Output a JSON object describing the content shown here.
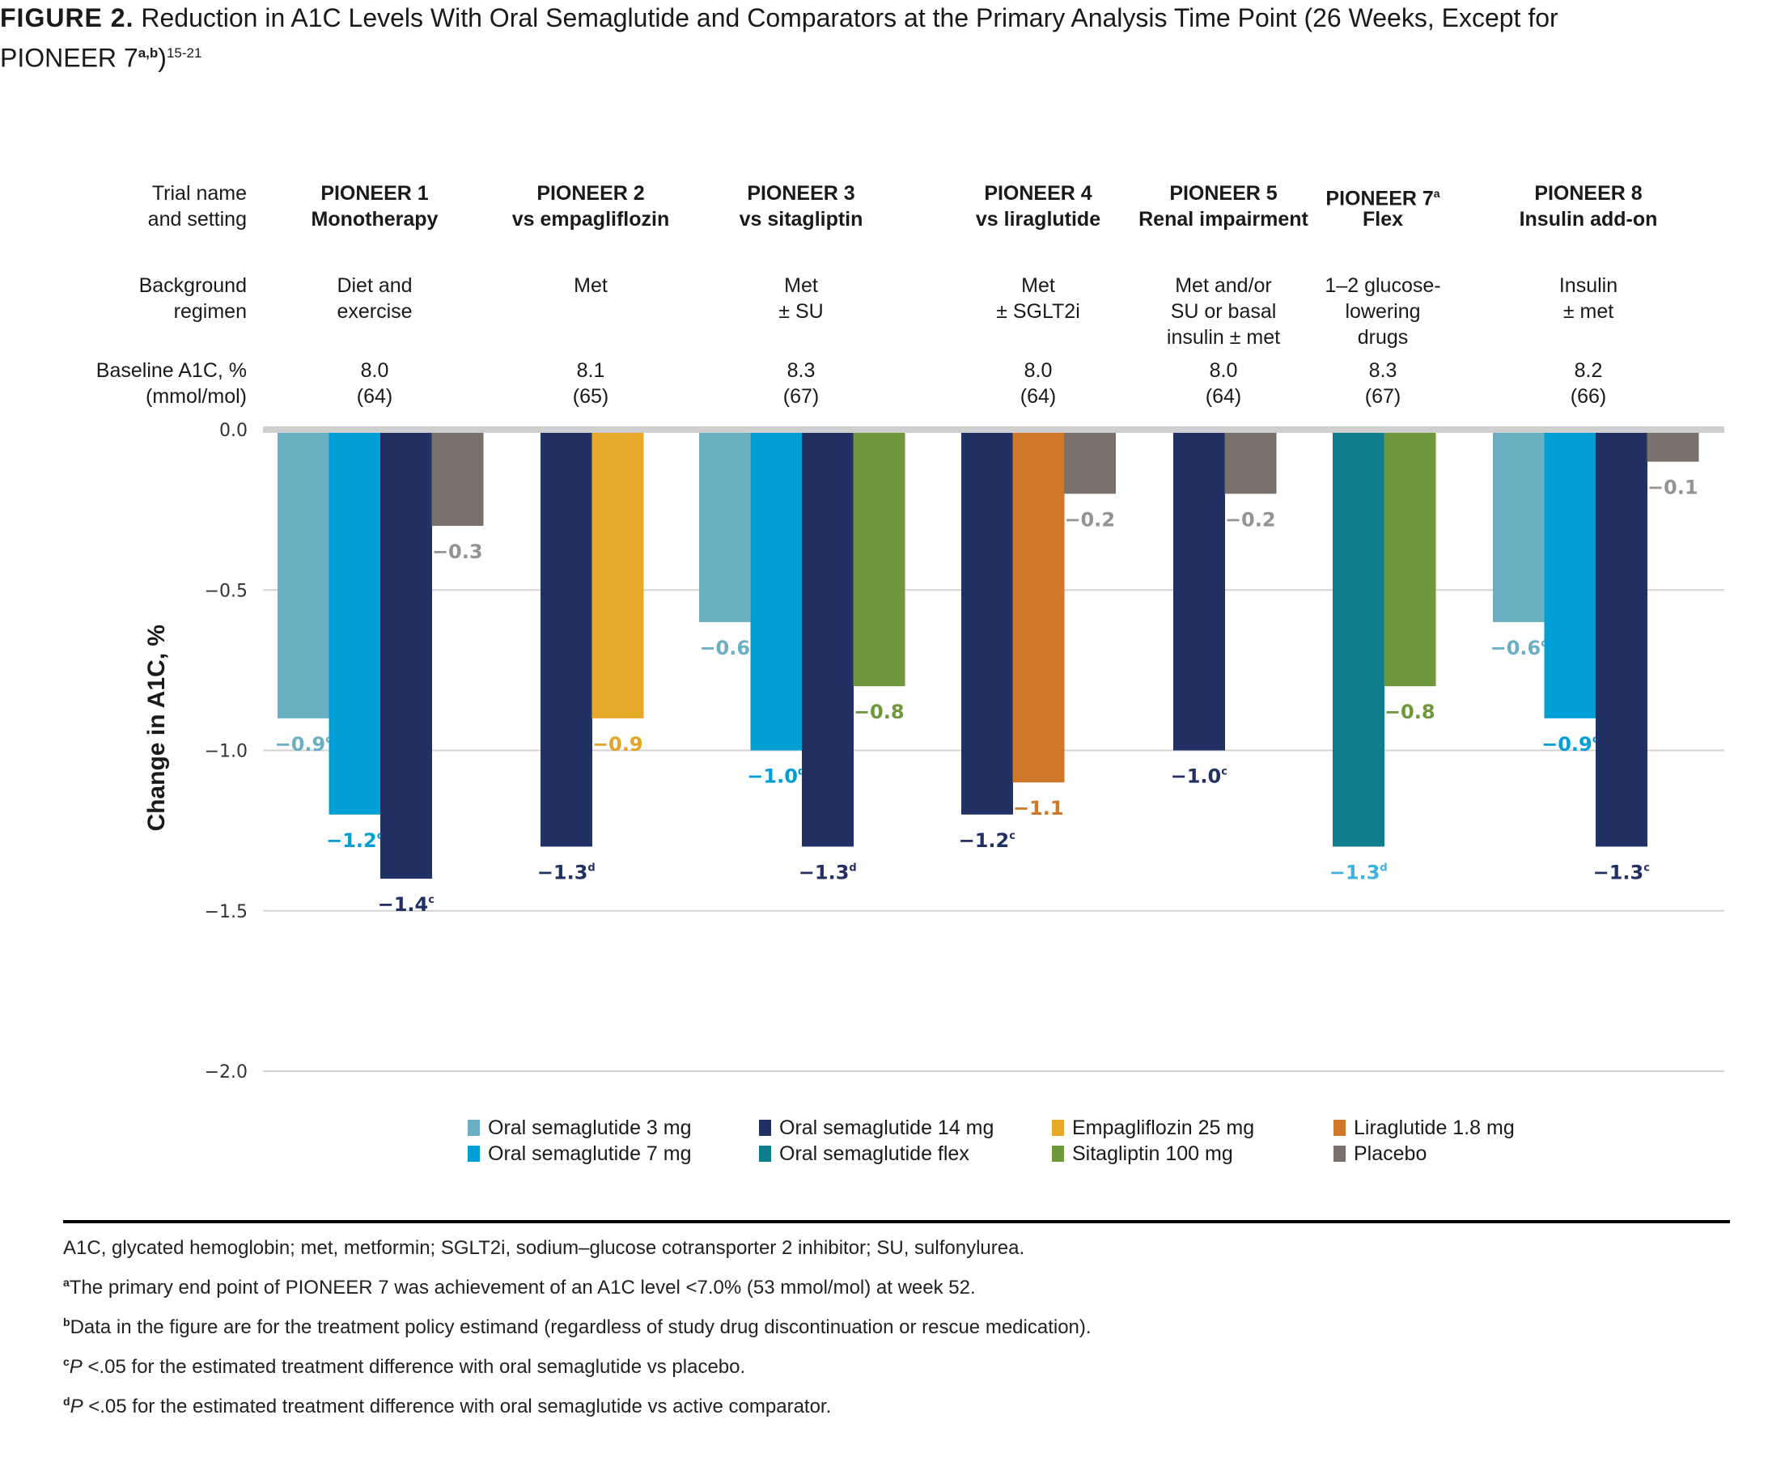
{
  "title": {
    "figure_label": "FIGURE 2.",
    "text": "Reduction in A1C Levels With Oral Semaglutide and Comparators at the Primary Analysis Time Point (26 Weeks, Except for",
    "line2": "PIONEER 7",
    "line2_sup": "a,b",
    "line2_close": ")",
    "line2_ref": "15-21"
  },
  "row_headers": {
    "trial": [
      "Trial name",
      "and setting"
    ],
    "background": [
      "Background",
      "regimen"
    ],
    "baseline": [
      "Baseline A1C, %",
      "(mmol/mol)"
    ]
  },
  "trials": [
    {
      "name": "PIONEER 1",
      "name_sup": "",
      "setting": "Monotherapy",
      "background": [
        "Diet and",
        "exercise"
      ],
      "baseline": "8.0",
      "baseline_mmol": "(64)"
    },
    {
      "name": "PIONEER 2",
      "name_sup": "",
      "setting": "vs empagliflozin",
      "background": [
        "Met"
      ],
      "baseline": "8.1",
      "baseline_mmol": "(65)"
    },
    {
      "name": "PIONEER 3",
      "name_sup": "",
      "setting": "vs sitagliptin",
      "background": [
        "Met",
        "± SU"
      ],
      "baseline": "8.3",
      "baseline_mmol": "(67)"
    },
    {
      "name": "PIONEER 4",
      "name_sup": "",
      "setting": "vs liraglutide",
      "background": [
        "Met",
        "± SGLT2i"
      ],
      "baseline": "8.0",
      "baseline_mmol": "(64)"
    },
    {
      "name": "PIONEER 5",
      "name_sup": "",
      "setting": "Renal impairment",
      "background": [
        "Met and/or",
        "SU or basal",
        "insulin ± met"
      ],
      "baseline": "8.0",
      "baseline_mmol": "(64)"
    },
    {
      "name": "PIONEER 7",
      "name_sup": "a",
      "setting": "Flex",
      "background": [
        "1–2 glucose-",
        "lowering",
        "drugs"
      ],
      "baseline": "8.3",
      "baseline_mmol": "(67)"
    },
    {
      "name": "PIONEER 8",
      "name_sup": "",
      "setting": "Insulin add-on",
      "background": [
        "Insulin",
        "± met"
      ],
      "baseline": "8.2",
      "baseline_mmol": "(66)"
    }
  ],
  "colors": {
    "sema3": "#6aafc2",
    "sema7": "#00a0d6",
    "sema14": "#223163",
    "semaflex": "#0f7d8c",
    "empa": "#e6a827",
    "sita": "#6f973b",
    "lira": "#cf7829",
    "placebo": "#79716c",
    "grid": "#d3d3d3",
    "zero_line": "#cfcfcf"
  },
  "chart_data": {
    "type": "bar",
    "title": "Reduction in A1C Levels With Oral Semaglutide and Comparators at the Primary Analysis Time Point",
    "xlabel": "",
    "ylabel": "Change in A1C, %",
    "ylim": [
      -2.0,
      0.0
    ],
    "yticks": [
      0.0,
      -0.5,
      -1.0,
      -1.5,
      -2.0
    ],
    "ytick_labels": [
      "0.0",
      "−0.5",
      "−1.0",
      "−1.5",
      "−2.0"
    ],
    "grid": true,
    "legend_position": "bottom",
    "categories": [
      "PIONEER 1",
      "PIONEER 2",
      "PIONEER 3",
      "PIONEER 4",
      "PIONEER 5",
      "PIONEER 7",
      "PIONEER 8"
    ],
    "groups": [
      {
        "trial": "PIONEER 1",
        "bars": [
          {
            "series": "sema3",
            "value": -0.9,
            "label": "−0.9",
            "sup": "c"
          },
          {
            "series": "sema7",
            "value": -1.2,
            "label": "−1.2",
            "sup": "c"
          },
          {
            "series": "sema14",
            "value": -1.4,
            "label": "−1.4",
            "sup": "c"
          },
          {
            "series": "placebo",
            "value": -0.3,
            "label": "−0.3",
            "sup": ""
          }
        ]
      },
      {
        "trial": "PIONEER 2",
        "bars": [
          {
            "series": "sema14",
            "value": -1.3,
            "label": "−1.3",
            "sup": "d"
          },
          {
            "series": "empa",
            "value": -0.9,
            "label": "−0.9",
            "sup": ""
          }
        ]
      },
      {
        "trial": "PIONEER 3",
        "bars": [
          {
            "series": "sema3",
            "value": -0.6,
            "label": "−0.6",
            "sup": ""
          },
          {
            "series": "sema7",
            "value": -1.0,
            "label": "−1.0",
            "sup": "d"
          },
          {
            "series": "sema14",
            "value": -1.3,
            "label": "−1.3",
            "sup": "d"
          },
          {
            "series": "sita",
            "value": -0.8,
            "label": "−0.8",
            "sup": ""
          }
        ]
      },
      {
        "trial": "PIONEER 4",
        "bars": [
          {
            "series": "sema14",
            "value": -1.2,
            "label": "−1.2",
            "sup": "c"
          },
          {
            "series": "lira",
            "value": -1.1,
            "label": "−1.1",
            "sup": ""
          },
          {
            "series": "placebo",
            "value": -0.2,
            "label": "−0.2",
            "sup": ""
          }
        ]
      },
      {
        "trial": "PIONEER 5",
        "bars": [
          {
            "series": "sema14",
            "value": -1.0,
            "label": "−1.0",
            "sup": "c"
          },
          {
            "series": "placebo",
            "value": -0.2,
            "label": "−0.2",
            "sup": ""
          }
        ]
      },
      {
        "trial": "PIONEER 7",
        "bars": [
          {
            "series": "semaflex",
            "value": -1.3,
            "label": "−1.3",
            "sup": "d"
          },
          {
            "series": "sita",
            "value": -0.8,
            "label": "−0.8",
            "sup": ""
          }
        ]
      },
      {
        "trial": "PIONEER 8",
        "bars": [
          {
            "series": "sema3",
            "value": -0.6,
            "label": "−0.6",
            "sup": "c"
          },
          {
            "series": "sema7",
            "value": -0.9,
            "label": "−0.9",
            "sup": "c"
          },
          {
            "series": "sema14",
            "value": -1.3,
            "label": "−1.3",
            "sup": "c"
          },
          {
            "series": "placebo",
            "value": -0.1,
            "label": "−0.1",
            "sup": ""
          }
        ]
      }
    ],
    "series": [
      {
        "key": "sema3",
        "name": "Oral semaglutide 3 mg"
      },
      {
        "key": "sema7",
        "name": "Oral semaglutide 7 mg"
      },
      {
        "key": "sema14",
        "name": "Oral semaglutide 14 mg"
      },
      {
        "key": "semaflex",
        "name": "Oral semaglutide flex"
      },
      {
        "key": "empa",
        "name": "Empagliflozin 25 mg"
      },
      {
        "key": "sita",
        "name": "Sitagliptin 100 mg"
      },
      {
        "key": "lira",
        "name": "Liraglutide 1.8 mg"
      },
      {
        "key": "placebo",
        "name": "Placebo"
      }
    ]
  },
  "label_colors": {
    "sema3": "#6aafc2",
    "sema7": "#00a0d6",
    "sema14": "#223163",
    "semaflex": "#3eb1de",
    "empa": "#e3a427",
    "sita": "#6f973b",
    "lira": "#cf7829",
    "placebo": "#949494"
  },
  "legend": [
    {
      "key": "sema3",
      "label": "Oral semaglutide 3 mg"
    },
    {
      "key": "sema7",
      "label": "Oral semaglutide 7 mg"
    },
    {
      "key": "sema14",
      "label": "Oral semaglutide 14 mg"
    },
    {
      "key": "semaflex",
      "label": "Oral semaglutide flex"
    },
    {
      "key": "empa",
      "label": "Empagliflozin 25 mg"
    },
    {
      "key": "sita",
      "label": "Sitagliptin 100 mg"
    },
    {
      "key": "lira",
      "label": "Liraglutide 1.8 mg"
    },
    {
      "key": "placebo",
      "label": "Placebo"
    }
  ],
  "footnotes": {
    "abbrev": "A1C, glycated hemoglobin; met, metformin; SGLT2i, sodium–glucose cotransporter 2 inhibitor; SU, sulfonylurea.",
    "notes": [
      {
        "mark": "a",
        "italic_p": false,
        "text": "The primary end point of PIONEER 7 was achievement of an A1C level <7.0% (53 mmol/mol) at week 52."
      },
      {
        "mark": "b",
        "italic_p": false,
        "text": "Data in the figure are for the treatment policy estimand (regardless of study drug discontinuation or rescue medication)."
      },
      {
        "mark": "c",
        "italic_p": true,
        "text": " <.05 for the estimated treatment difference with oral semaglutide vs placebo."
      },
      {
        "mark": "d",
        "italic_p": true,
        "text": " <.05 for the estimated treatment difference with oral semaglutide vs active comparator."
      }
    ],
    "p_letter": "P"
  }
}
